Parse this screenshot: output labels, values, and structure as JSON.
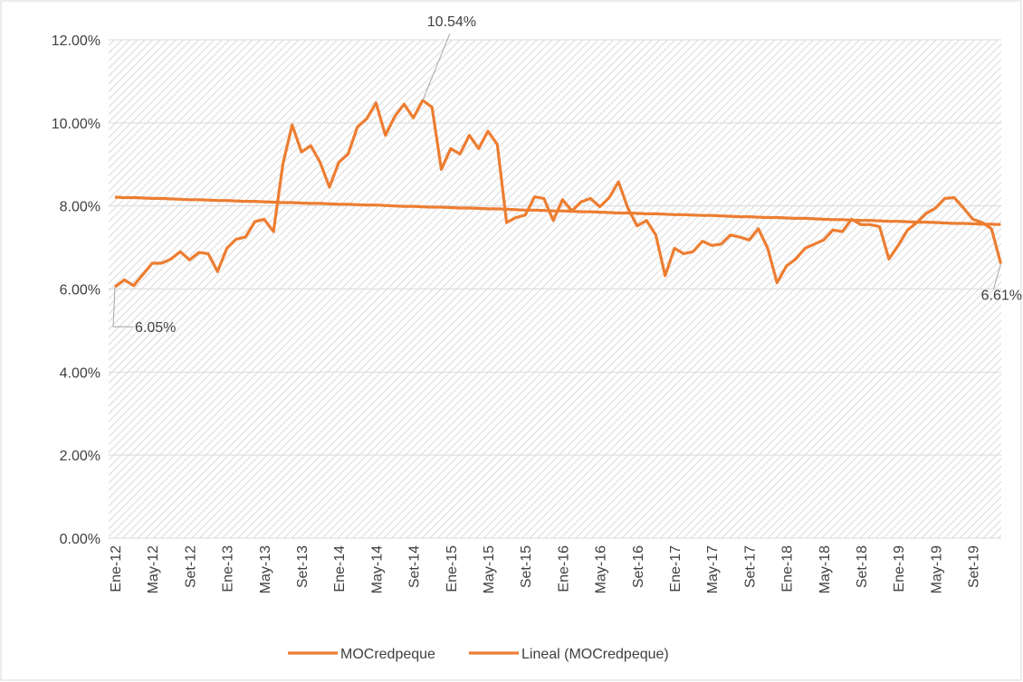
{
  "chart_data": {
    "type": "line",
    "categories": [
      "Ene-12",
      null,
      null,
      null,
      "May-12",
      null,
      null,
      null,
      "Set-12",
      null,
      null,
      null,
      "Ene-13",
      null,
      null,
      null,
      "May-13",
      null,
      null,
      null,
      "Set-13",
      null,
      null,
      null,
      "Ene-14",
      null,
      null,
      null,
      "May-14",
      null,
      null,
      null,
      "Set-14",
      null,
      null,
      null,
      "Ene-15",
      null,
      null,
      null,
      "May-15",
      null,
      null,
      null,
      "Set-15",
      null,
      null,
      null,
      "Ene-16",
      null,
      null,
      null,
      "May-16",
      null,
      null,
      null,
      "Set-16",
      null,
      null,
      null,
      "Ene-17",
      null,
      null,
      null,
      "May-17",
      null,
      null,
      null,
      "Set-17",
      null,
      null,
      null,
      "Ene-18",
      null,
      null,
      null,
      "May-18",
      null,
      null,
      null,
      "Set-18",
      null,
      null,
      null,
      "Ene-19",
      null,
      null,
      null,
      "May-19",
      null,
      null,
      null,
      "Set-19",
      null,
      null,
      null
    ],
    "series": [
      {
        "name": "MOCredpeque",
        "color": "#ed7d31",
        "values": [
          6.05,
          6.22,
          6.08,
          6.35,
          6.62,
          6.62,
          6.72,
          6.9,
          6.7,
          6.88,
          6.85,
          6.42,
          6.98,
          7.2,
          7.25,
          7.62,
          7.68,
          7.38,
          9.0,
          9.95,
          9.3,
          9.45,
          9.05,
          8.45,
          9.05,
          9.25,
          9.9,
          10.1,
          10.48,
          9.7,
          10.15,
          10.45,
          10.12,
          10.54,
          10.38,
          8.88,
          9.38,
          9.25,
          9.7,
          9.38,
          9.8,
          9.48,
          7.6,
          7.72,
          7.78,
          8.22,
          8.18,
          7.65,
          8.15,
          7.88,
          8.1,
          8.18,
          7.98,
          8.2,
          8.58,
          7.95,
          7.52,
          7.65,
          7.3,
          6.32,
          6.98,
          6.85,
          6.9,
          7.15,
          7.05,
          7.08,
          7.3,
          7.25,
          7.18,
          7.45,
          6.98,
          6.15,
          6.55,
          6.72,
          6.98,
          7.08,
          7.18,
          7.42,
          7.38,
          7.68,
          7.55,
          7.55,
          7.5,
          6.72,
          7.05,
          7.42,
          7.6,
          7.82,
          7.95,
          8.18,
          8.2,
          7.95,
          7.68,
          7.6,
          7.45,
          6.61
        ],
        "value_labels": [
          "6.05%",
          null,
          null,
          null,
          null,
          null,
          null,
          null,
          null,
          null,
          null,
          null,
          null,
          null,
          null,
          null,
          null,
          null,
          null,
          null,
          null,
          null,
          null,
          null,
          null,
          null,
          null,
          null,
          null,
          null,
          null,
          null,
          null,
          "10.54%",
          null,
          null,
          null,
          null,
          null,
          null,
          null,
          null,
          null,
          null,
          null,
          null,
          null,
          null,
          null,
          null,
          null,
          null,
          null,
          null,
          null,
          null,
          null,
          null,
          null,
          null,
          null,
          null,
          null,
          null,
          null,
          null,
          null,
          null,
          null,
          null,
          null,
          null,
          null,
          null,
          null,
          null,
          null,
          null,
          null,
          null,
          null,
          null,
          null,
          null,
          null,
          null,
          null,
          null,
          null,
          null,
          null,
          null,
          null,
          null,
          null,
          "6.61%"
        ]
      },
      {
        "name": "Lineal (MOCredpeque)",
        "color": "#ed7d31",
        "values": [
          8.21,
          8.2,
          8.2,
          8.19,
          8.18,
          8.18,
          8.17,
          8.16,
          8.15,
          8.15,
          8.14,
          8.13,
          8.13,
          8.12,
          8.11,
          8.11,
          8.1,
          8.09,
          8.08,
          8.08,
          8.07,
          8.06,
          8.06,
          8.05,
          8.04,
          8.04,
          8.03,
          8.02,
          8.02,
          8.01,
          8.0,
          7.99,
          7.99,
          7.98,
          7.97,
          7.97,
          7.96,
          7.95,
          7.95,
          7.94,
          7.93,
          7.93,
          7.92,
          7.91,
          7.9,
          7.9,
          7.89,
          7.88,
          7.88,
          7.87,
          7.86,
          7.86,
          7.85,
          7.84,
          7.83,
          7.83,
          7.82,
          7.81,
          7.81,
          7.8,
          7.79,
          7.79,
          7.78,
          7.77,
          7.77,
          7.76,
          7.75,
          7.74,
          7.74,
          7.73,
          7.72,
          7.72,
          7.71,
          7.7,
          7.7,
          7.69,
          7.68,
          7.67,
          7.67,
          7.66,
          7.65,
          7.65,
          7.64,
          7.63,
          7.63,
          7.62,
          7.61,
          7.61,
          7.6,
          7.59,
          7.58,
          7.58,
          7.57,
          7.56,
          7.56,
          7.55
        ]
      }
    ],
    "ylim": [
      0,
      12
    ],
    "yticks": [
      {
        "value": 0,
        "label": "0.00%"
      },
      {
        "value": 2,
        "label": "2.00%"
      },
      {
        "value": 4,
        "label": "4.00%"
      },
      {
        "value": 6,
        "label": "6.00%"
      },
      {
        "value": 8,
        "label": "8.00%"
      },
      {
        "value": 10,
        "label": "10.00%"
      },
      {
        "value": 12,
        "label": "12.00%"
      }
    ],
    "grid": true,
    "legend": "bottom"
  }
}
